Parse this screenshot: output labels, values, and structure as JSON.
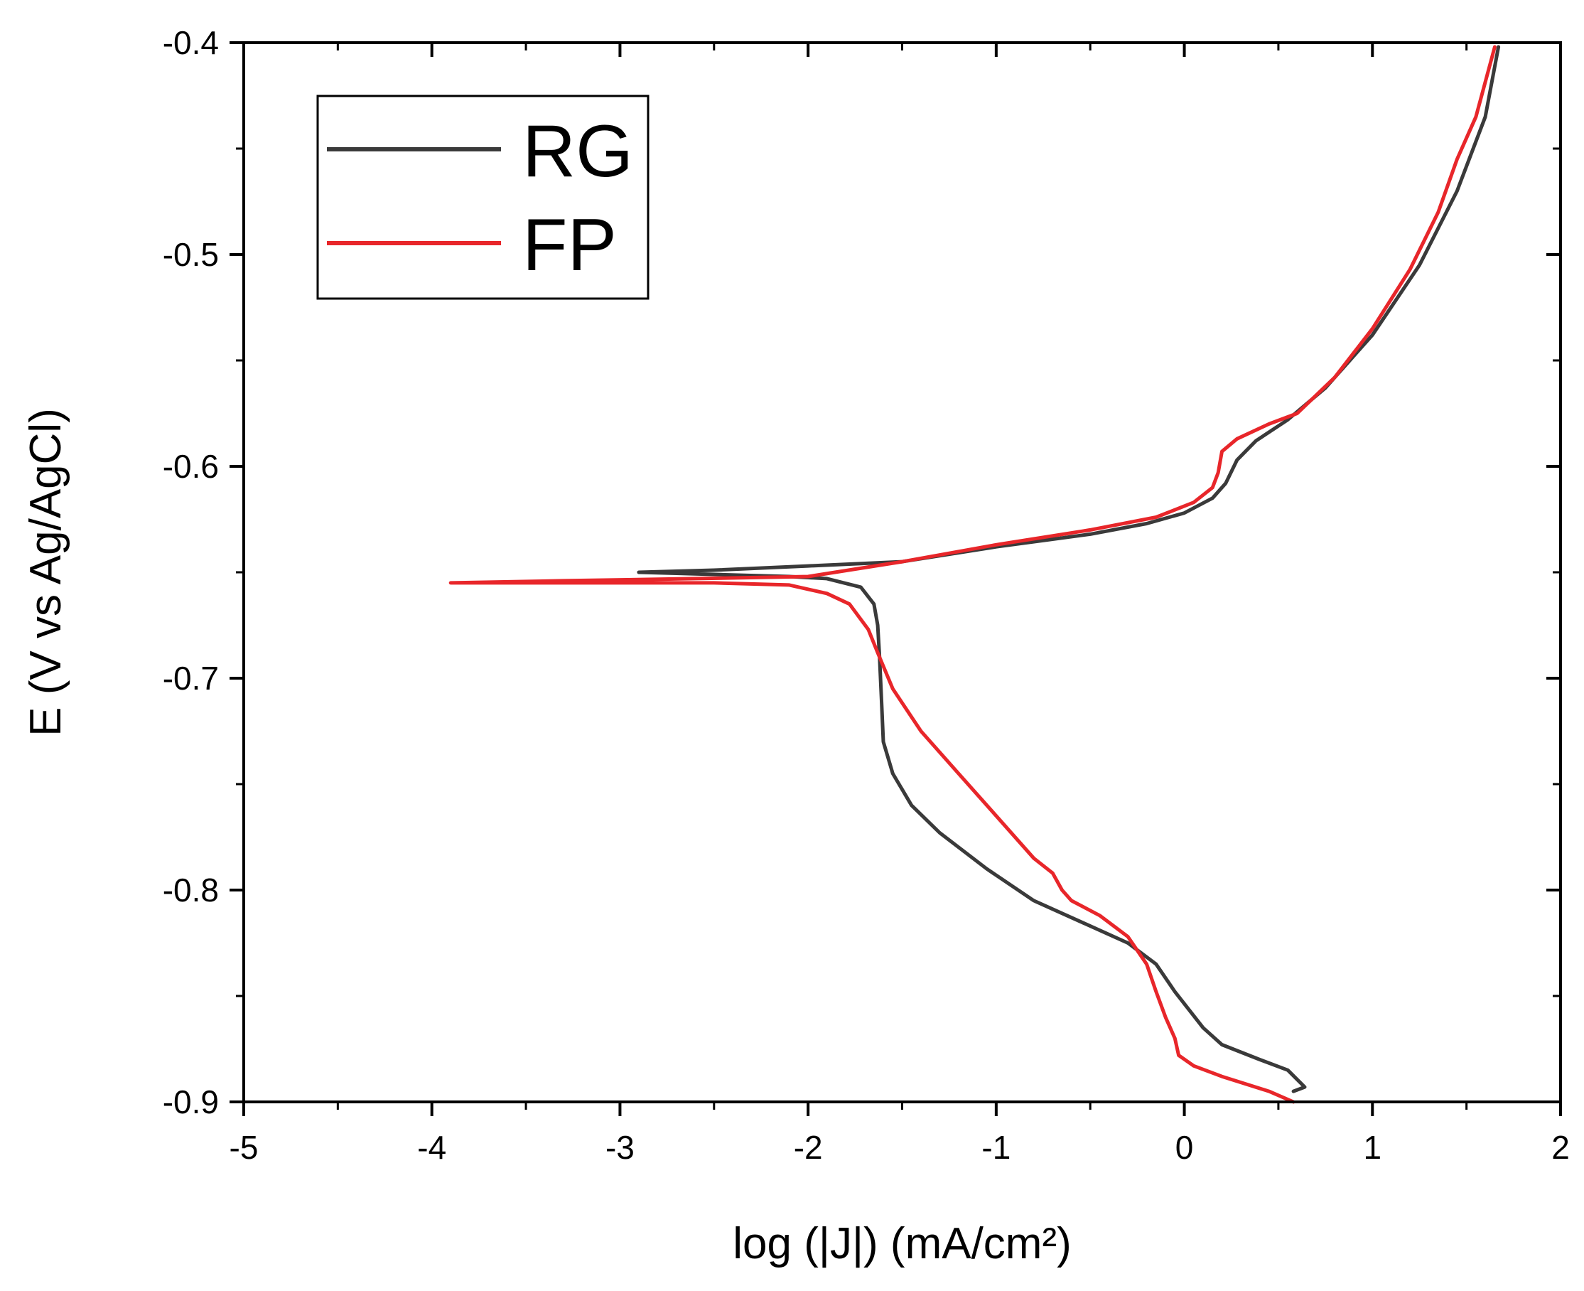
{
  "chart_data": {
    "type": "line",
    "title": "",
    "xlabel": "log (|J|)  (mA/cm²)",
    "ylabel": "E (V vs Ag/AgCl)",
    "xlim": [
      -5,
      2
    ],
    "ylim": [
      -0.9,
      -0.4
    ],
    "xticks": [
      -5,
      -4,
      -3,
      -2,
      -1,
      0,
      1,
      2
    ],
    "xtick_labels": [
      "-5",
      "-4",
      "-3",
      "-2",
      "-1",
      "0",
      "1",
      "2"
    ],
    "yticks": [
      -0.9,
      -0.8,
      -0.7,
      -0.6,
      -0.5,
      -0.4
    ],
    "ytick_labels": [
      "-0.9",
      "-0.8",
      "-0.7",
      "-0.6",
      "-0.5",
      "-0.4"
    ],
    "grid": false,
    "legend_position": "top-left",
    "series": [
      {
        "name": "RG",
        "color": "#3a3a3a",
        "points": [
          [
            0.58,
            -0.895
          ],
          [
            0.64,
            -0.893
          ],
          [
            0.55,
            -0.885
          ],
          [
            0.4,
            -0.88
          ],
          [
            0.2,
            -0.873
          ],
          [
            0.1,
            -0.865
          ],
          [
            -0.05,
            -0.848
          ],
          [
            -0.15,
            -0.835
          ],
          [
            -0.3,
            -0.825
          ],
          [
            -0.55,
            -0.815
          ],
          [
            -0.8,
            -0.805
          ],
          [
            -1.05,
            -0.79
          ],
          [
            -1.3,
            -0.773
          ],
          [
            -1.45,
            -0.76
          ],
          [
            -1.55,
            -0.745
          ],
          [
            -1.6,
            -0.73
          ],
          [
            -1.61,
            -0.71
          ],
          [
            -1.62,
            -0.69
          ],
          [
            -1.63,
            -0.675
          ],
          [
            -1.65,
            -0.665
          ],
          [
            -1.72,
            -0.657
          ],
          [
            -1.9,
            -0.653
          ],
          [
            -2.1,
            -0.652
          ],
          [
            -2.5,
            -0.651
          ],
          [
            -2.9,
            -0.65
          ],
          [
            -2.5,
            -0.649
          ],
          [
            -2.0,
            -0.647
          ],
          [
            -1.5,
            -0.645
          ],
          [
            -1.0,
            -0.638
          ],
          [
            -0.5,
            -0.632
          ],
          [
            -0.2,
            -0.627
          ],
          [
            0.0,
            -0.622
          ],
          [
            0.15,
            -0.615
          ],
          [
            0.22,
            -0.608
          ],
          [
            0.28,
            -0.597
          ],
          [
            0.38,
            -0.588
          ],
          [
            0.55,
            -0.578
          ],
          [
            0.75,
            -0.563
          ],
          [
            1.0,
            -0.538
          ],
          [
            1.25,
            -0.505
          ],
          [
            1.45,
            -0.47
          ],
          [
            1.6,
            -0.435
          ],
          [
            1.67,
            -0.402
          ]
        ]
      },
      {
        "name": "FP",
        "color": "#e8262a",
        "points": [
          [
            0.58,
            -0.9
          ],
          [
            0.45,
            -0.895
          ],
          [
            0.2,
            -0.888
          ],
          [
            0.05,
            -0.883
          ],
          [
            -0.03,
            -0.878
          ],
          [
            -0.05,
            -0.87
          ],
          [
            -0.1,
            -0.86
          ],
          [
            -0.15,
            -0.848
          ],
          [
            -0.2,
            -0.835
          ],
          [
            -0.3,
            -0.822
          ],
          [
            -0.45,
            -0.812
          ],
          [
            -0.6,
            -0.805
          ],
          [
            -0.65,
            -0.8
          ],
          [
            -0.7,
            -0.792
          ],
          [
            -0.8,
            -0.785
          ],
          [
            -1.0,
            -0.765
          ],
          [
            -1.2,
            -0.745
          ],
          [
            -1.4,
            -0.725
          ],
          [
            -1.55,
            -0.705
          ],
          [
            -1.63,
            -0.688
          ],
          [
            -1.68,
            -0.677
          ],
          [
            -1.78,
            -0.665
          ],
          [
            -1.9,
            -0.66
          ],
          [
            -2.1,
            -0.656
          ],
          [
            -2.5,
            -0.655
          ],
          [
            -3.0,
            -0.655
          ],
          [
            -3.5,
            -0.655
          ],
          [
            -3.9,
            -0.655
          ],
          [
            -3.3,
            -0.654
          ],
          [
            -2.6,
            -0.653
          ],
          [
            -2.0,
            -0.652
          ],
          [
            -1.5,
            -0.645
          ],
          [
            -1.0,
            -0.637
          ],
          [
            -0.5,
            -0.63
          ],
          [
            -0.15,
            -0.624
          ],
          [
            0.05,
            -0.617
          ],
          [
            0.15,
            -0.61
          ],
          [
            0.18,
            -0.603
          ],
          [
            0.2,
            -0.593
          ],
          [
            0.28,
            -0.587
          ],
          [
            0.45,
            -0.58
          ],
          [
            0.6,
            -0.575
          ],
          [
            0.8,
            -0.558
          ],
          [
            1.0,
            -0.535
          ],
          [
            1.2,
            -0.507
          ],
          [
            1.35,
            -0.48
          ],
          [
            1.45,
            -0.455
          ],
          [
            1.55,
            -0.435
          ],
          [
            1.65,
            -0.402
          ]
        ]
      }
    ]
  }
}
